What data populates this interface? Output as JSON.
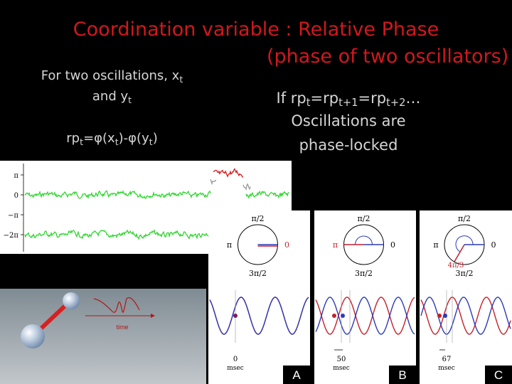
{
  "slide": {
    "title_line1": "Coordination variable : Relative Phase",
    "title_line2": "(phase of two oscillators)",
    "left_text": {
      "line1_prefix": "For two oscillations,  x",
      "line1_sub": "t",
      "line2_prefix": "and y",
      "line2_sub": "t",
      "formula": {
        "p1": "rp",
        "s1": "t",
        "p2": "=φ(x",
        "s2": "t",
        "p3": ")-φ(y",
        "s3": "t",
        "p4": ")"
      }
    },
    "right_text": {
      "line1": {
        "p1": "If rp",
        "s1": "t",
        "p2": "=rp",
        "s2": "t+1",
        "p3": "=rp",
        "s3": "t+2",
        "p4": "…"
      },
      "line2": "Oscillations are",
      "line3": "phase-locked"
    }
  },
  "phase_plot": {
    "y_ticks": [
      "π",
      "0",
      "−π",
      "−2π"
    ]
  },
  "animation_panel": {
    "time_label": "time"
  },
  "panels": [
    {
      "label": "A",
      "top": "π/2",
      "left": "π",
      "right": "0",
      "bottom": "3π/2",
      "phase_label": "",
      "delay_value": "0",
      "delay_unit": "msec"
    },
    {
      "label": "B",
      "top": "π/2",
      "left": "π",
      "right": "0",
      "bottom": "3π/2",
      "phase_label": "",
      "delay_value": "50",
      "delay_unit": "msec"
    },
    {
      "label": "C",
      "top": "π/2",
      "left": "π",
      "right": "0",
      "bottom": "3π/2",
      "phase_label": "4π/3",
      "delay_value": "67",
      "delay_unit": "msec"
    }
  ],
  "colors": {
    "title": "#d1181e",
    "text": "#d6d6d6",
    "green_trace": "#2fd62f",
    "red_trace": "#d41a1a",
    "blue_wave": "#2b3bb8",
    "red_wave": "#c61f2a"
  }
}
